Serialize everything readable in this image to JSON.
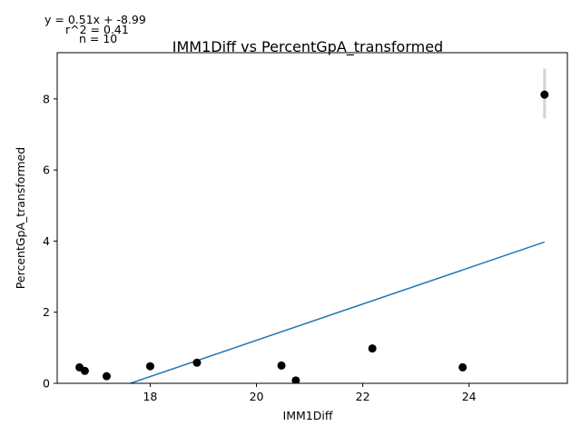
{
  "chart_data": {
    "type": "scatter",
    "title": "IMM1Diff vs PercentGpA_transformed",
    "xlabel": "IMM1Diff",
    "ylabel": "PercentGpA_transformed",
    "annotations": [
      "y = 0.51x + -8.99",
      "r^2 = 0.41",
      "n = 10"
    ],
    "xlim": [
      16.25,
      25.85
    ],
    "ylim": [
      0,
      9.3
    ],
    "xticks": [
      18,
      20,
      22,
      24
    ],
    "yticks": [
      0,
      2,
      4,
      6,
      8
    ],
    "grid": false,
    "points": [
      {
        "x": 16.67,
        "y": 0.45
      },
      {
        "x": 16.77,
        "y": 0.35
      },
      {
        "x": 17.18,
        "y": 0.2
      },
      {
        "x": 18.0,
        "y": 0.48
      },
      {
        "x": 18.88,
        "y": 0.58
      },
      {
        "x": 20.47,
        "y": 0.5
      },
      {
        "x": 20.74,
        "y": 0.08
      },
      {
        "x": 22.18,
        "y": 0.98
      },
      {
        "x": 23.88,
        "y": 0.45
      },
      {
        "x": 25.42,
        "y": 8.12
      }
    ],
    "error_bars": [
      {
        "x": 25.42,
        "low": 7.45,
        "high": 8.85
      }
    ],
    "fit_line": {
      "slope": 0.51,
      "intercept": -8.99,
      "x_range": [
        16.67,
        25.42
      ]
    },
    "colors": {
      "points": "#000000",
      "fit_line": "#1f77b4",
      "error_bar": "#d3d3d3"
    }
  }
}
